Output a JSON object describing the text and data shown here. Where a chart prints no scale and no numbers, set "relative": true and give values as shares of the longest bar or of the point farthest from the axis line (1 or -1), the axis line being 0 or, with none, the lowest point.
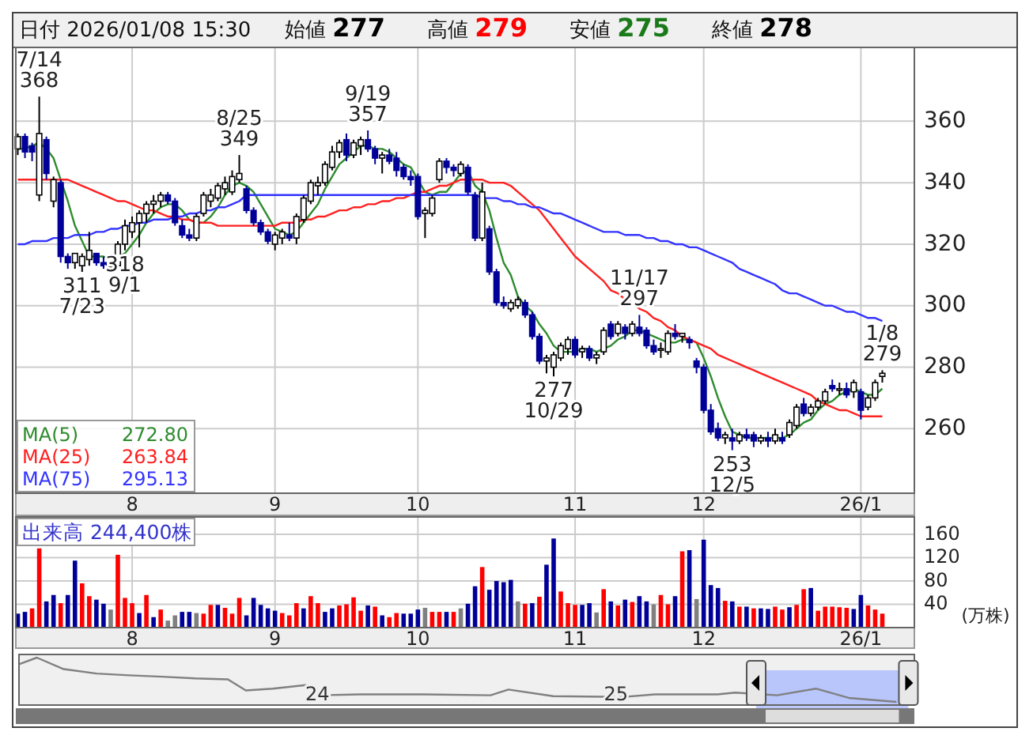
{
  "chart_data": [
    {
      "type": "candlestick",
      "title": "日付 2026/01/08 15:30",
      "annotations": [
        "始値 277",
        "高値 279",
        "安値 275",
        "終値 278",
        {
          "text": "7/14\n368",
          "y": 368
        },
        {
          "text": "311\n7/23",
          "y": 311
        },
        {
          "text": "8/25\n349",
          "y": 349
        },
        {
          "text": "318\n9/1",
          "y": 318
        },
        {
          "text": "9/19\n357",
          "y": 357
        },
        {
          "text": "277\n10/29",
          "y": 277
        },
        {
          "text": "11/17\n297",
          "y": 297
        },
        {
          "text": "253\n12/5",
          "y": 253
        },
        {
          "text": "1/8\n279",
          "y": 279
        }
      ],
      "categories": [
        null,
        null,
        null,
        null,
        null,
        null,
        null,
        null,
        null,
        null,
        null,
        null,
        null,
        null,
        null,
        null,
        "8",
        null,
        null,
        null,
        null,
        null,
        null,
        null,
        null,
        null,
        null,
        null,
        null,
        null,
        null,
        null,
        null,
        null,
        null,
        null,
        "9",
        null,
        null,
        null,
        null,
        null,
        null,
        null,
        null,
        null,
        null,
        null,
        null,
        null,
        null,
        null,
        null,
        null,
        null,
        null,
        "10",
        null,
        null,
        null,
        null,
        null,
        null,
        null,
        null,
        null,
        null,
        null,
        null,
        null,
        null,
        null,
        null,
        null,
        null,
        null,
        null,
        null,
        "11",
        null,
        null,
        null,
        null,
        null,
        null,
        null,
        null,
        null,
        null,
        null,
        null,
        null,
        null,
        null,
        null,
        null,
        "12",
        null,
        null,
        null,
        null,
        null,
        null,
        null,
        null,
        null,
        null,
        null,
        null,
        null,
        null,
        null,
        null,
        null,
        null,
        null,
        null,
        null,
        "26/1",
        null,
        null,
        null
      ],
      "ohlc": [
        [
          351,
          356,
          349,
          355
        ],
        [
          355,
          356,
          348,
          350
        ],
        [
          352,
          353,
          347,
          350
        ],
        [
          336,
          368,
          334,
          356
        ],
        [
          354,
          355,
          341,
          343
        ],
        [
          334,
          342,
          332,
          341
        ],
        [
          340,
          341,
          314,
          316
        ],
        [
          316,
          317,
          312,
          314
        ],
        [
          314,
          317,
          312,
          317
        ],
        [
          313,
          317,
          311,
          316
        ],
        [
          315,
          324,
          313,
          318
        ],
        [
          317,
          317,
          313,
          314
        ],
        [
          314,
          316,
          312,
          313
        ],
        [
          313,
          315,
          312,
          313
        ],
        [
          313,
          321,
          312,
          320
        ],
        [
          320,
          328,
          318,
          326
        ],
        [
          324,
          329,
          322,
          327
        ],
        [
          327,
          331,
          319,
          330
        ],
        [
          330,
          334,
          327,
          333
        ],
        [
          333,
          336,
          330,
          334
        ],
        [
          334,
          337,
          332,
          336
        ],
        [
          336,
          337,
          333,
          334
        ],
        [
          334,
          335,
          326,
          327
        ],
        [
          326,
          328,
          322,
          323
        ],
        [
          323,
          325,
          321,
          322
        ],
        [
          322,
          330,
          321,
          329
        ],
        [
          330,
          337,
          329,
          336
        ],
        [
          334,
          338,
          332,
          336
        ],
        [
          335,
          340,
          334,
          339
        ],
        [
          338,
          342,
          336,
          340
        ],
        [
          337,
          344,
          336,
          342
        ],
        [
          341,
          349,
          340,
          343
        ],
        [
          338,
          339,
          330,
          331
        ],
        [
          331,
          332,
          326,
          327
        ],
        [
          327,
          328,
          323,
          324
        ],
        [
          324,
          325,
          320,
          321
        ],
        [
          320,
          324,
          318,
          323
        ],
        [
          322,
          325,
          320,
          324
        ],
        [
          323,
          327,
          321,
          322
        ],
        [
          322,
          330,
          320,
          329
        ],
        [
          328,
          336,
          327,
          335
        ],
        [
          334,
          341,
          333,
          340
        ],
        [
          339,
          342,
          336,
          340
        ],
        [
          340,
          347,
          339,
          346
        ],
        [
          345,
          352,
          344,
          350
        ],
        [
          350,
          354,
          348,
          353
        ],
        [
          354,
          356,
          347,
          349
        ],
        [
          349,
          354,
          348,
          353
        ],
        [
          352,
          355,
          349,
          354
        ],
        [
          354,
          357,
          350,
          351
        ],
        [
          351,
          352,
          346,
          348
        ],
        [
          348,
          350,
          343,
          349
        ],
        [
          349,
          351,
          346,
          347
        ],
        [
          348,
          350,
          342,
          344
        ],
        [
          345,
          346,
          341,
          342
        ],
        [
          342,
          344,
          339,
          341
        ],
        [
          342,
          343,
          328,
          329
        ],
        [
          330,
          332,
          322,
          331
        ],
        [
          330,
          336,
          329,
          335
        ],
        [
          341,
          348,
          340,
          347
        ],
        [
          347,
          348,
          343,
          345
        ],
        [
          345,
          346,
          342,
          344
        ],
        [
          343,
          347,
          342,
          346
        ],
        [
          345,
          346,
          336,
          337
        ],
        [
          336,
          337,
          321,
          322
        ],
        [
          322,
          340,
          321,
          337
        ],
        [
          325,
          326,
          310,
          311
        ],
        [
          311,
          312,
          300,
          301
        ],
        [
          301,
          303,
          299,
          300
        ],
        [
          299,
          302,
          298,
          301
        ],
        [
          300,
          303,
          299,
          302
        ],
        [
          301,
          302,
          296,
          297
        ],
        [
          297,
          298,
          289,
          290
        ],
        [
          290,
          291,
          281,
          282
        ],
        [
          282,
          284,
          278,
          283
        ],
        [
          280,
          285,
          277,
          284
        ],
        [
          283,
          288,
          282,
          287
        ],
        [
          286,
          290,
          284,
          289
        ],
        [
          289,
          290,
          283,
          284
        ],
        [
          285,
          287,
          283,
          286
        ],
        [
          286,
          287,
          282,
          283
        ],
        [
          283,
          285,
          281,
          284
        ],
        [
          285,
          293,
          284,
          292
        ],
        [
          294,
          295,
          289,
          290
        ],
        [
          291,
          295,
          290,
          294
        ],
        [
          293,
          294,
          289,
          291
        ],
        [
          291,
          295,
          290,
          294
        ],
        [
          293,
          297,
          290,
          291
        ],
        [
          292,
          293,
          286,
          287
        ],
        [
          287,
          289,
          284,
          285
        ],
        [
          286,
          288,
          283,
          286
        ],
        [
          285,
          292,
          284,
          291
        ],
        [
          291,
          294,
          289,
          290
        ],
        [
          290,
          291,
          288,
          291
        ],
        [
          289,
          290,
          286,
          288
        ],
        [
          282,
          283,
          278,
          280
        ],
        [
          280,
          281,
          265,
          266
        ],
        [
          266,
          268,
          258,
          259
        ],
        [
          260,
          262,
          256,
          257
        ],
        [
          257,
          259,
          255,
          258
        ],
        [
          257,
          260,
          253,
          256
        ],
        [
          256,
          259,
          255,
          258
        ],
        [
          258,
          260,
          256,
          257
        ],
        [
          258,
          259,
          254,
          256
        ],
        [
          256,
          258,
          255,
          257
        ],
        [
          257,
          259,
          254,
          256
        ],
        [
          256,
          260,
          255,
          258
        ],
        [
          257,
          259,
          255,
          256
        ],
        [
          258,
          263,
          257,
          262
        ],
        [
          261,
          268,
          260,
          267
        ],
        [
          268,
          270,
          264,
          265
        ],
        [
          265,
          268,
          264,
          267
        ],
        [
          267,
          270,
          266,
          269
        ],
        [
          269,
          273,
          268,
          272
        ],
        [
          274,
          276,
          272,
          273
        ],
        [
          273,
          275,
          271,
          273
        ],
        [
          273,
          275,
          270,
          271
        ],
        [
          272,
          276,
          270,
          275
        ],
        [
          272,
          273,
          263,
          266
        ],
        [
          267,
          271,
          266,
          270
        ],
        [
          270,
          276,
          269,
          275
        ],
        [
          277,
          279,
          275,
          278
        ]
      ],
      "series": [
        {
          "name": "MA(5) 272.80",
          "type": "line",
          "color": "#2e8b2e",
          "values": [
            351,
            351,
            352,
            353,
            351,
            348,
            341,
            334,
            326,
            321,
            316,
            316,
            316,
            315,
            316,
            317,
            320,
            323,
            327,
            330,
            332,
            333,
            333,
            331,
            328,
            327,
            327,
            329,
            332,
            336,
            339,
            340,
            339,
            337,
            333,
            329,
            325,
            324,
            323,
            324,
            327,
            330,
            333,
            338,
            342,
            346,
            348,
            350,
            352,
            352,
            351,
            351,
            350,
            348,
            346,
            345,
            341,
            337,
            336,
            337,
            337,
            340,
            343,
            344,
            339,
            337,
            331,
            322,
            314,
            310,
            303,
            300,
            298,
            294,
            291,
            287,
            285,
            285,
            285,
            286,
            286,
            285,
            286,
            287,
            289,
            290,
            292,
            292,
            291,
            290,
            289,
            288,
            288,
            289,
            289,
            288,
            283,
            277,
            270,
            264,
            259,
            258,
            257,
            257,
            257,
            257,
            257,
            257,
            258,
            260,
            262,
            263,
            266,
            268,
            269,
            271,
            272,
            273,
            272,
            271,
            271,
            273
          ]
        },
        {
          "name": "MA(25) 263.84",
          "type": "line",
          "color": "#ff2020",
          "values": [
            341,
            341,
            341,
            341,
            341,
            341,
            341,
            341,
            340,
            339,
            338,
            337,
            336,
            335,
            334,
            334,
            333,
            332,
            331,
            331,
            330,
            329,
            329,
            328,
            328,
            327,
            327,
            327,
            326,
            326,
            326,
            326,
            326,
            326,
            326,
            326,
            326,
            327,
            327,
            327,
            328,
            328,
            329,
            329,
            330,
            331,
            331,
            332,
            332,
            333,
            333,
            334,
            334,
            335,
            335,
            336,
            337,
            337,
            338,
            339,
            339,
            340,
            341,
            341,
            341,
            341,
            340,
            340,
            340,
            339,
            337,
            335,
            333,
            331,
            328,
            325,
            322,
            319,
            316,
            314,
            312,
            310,
            308,
            305,
            304,
            302,
            301,
            299,
            298,
            296,
            295,
            293,
            292,
            290,
            289,
            288,
            287,
            286,
            284,
            283,
            282,
            281,
            280,
            279,
            278,
            277,
            276,
            275,
            274,
            273,
            272,
            271,
            269,
            268,
            267,
            266,
            266,
            265,
            264,
            264,
            264,
            264
          ]
        },
        {
          "name": "MA(75) 295.13",
          "type": "line",
          "color": "#3333ff",
          "values": [
            320,
            320,
            321,
            321,
            321,
            322,
            322,
            322,
            323,
            323,
            323,
            324,
            324,
            325,
            325,
            326,
            326,
            327,
            327,
            328,
            328,
            328,
            329,
            329,
            330,
            330,
            331,
            331,
            332,
            332,
            333,
            334,
            336,
            336,
            336,
            336,
            336,
            336,
            336,
            336,
            336,
            336,
            336,
            336,
            336,
            336,
            336,
            336,
            336,
            336,
            336,
            336,
            336,
            336,
            336,
            336,
            336,
            336,
            336,
            336,
            336,
            336,
            336,
            336,
            336,
            335,
            335,
            335,
            334,
            334,
            333,
            333,
            332,
            332,
            331,
            330,
            330,
            329,
            328,
            327,
            326,
            325,
            324,
            324,
            324,
            323,
            323,
            323,
            322,
            322,
            321,
            321,
            320,
            320,
            319,
            319,
            318,
            317,
            316,
            315,
            314,
            312,
            311,
            310,
            309,
            308,
            307,
            305,
            304,
            304,
            303,
            302,
            301,
            300,
            300,
            299,
            298,
            298,
            297,
            296,
            296,
            295
          ]
        }
      ],
      "ylim": [
        239,
        384
      ],
      "yticks": [
        260,
        280,
        300,
        320,
        340,
        360
      ],
      "grid": true
    },
    {
      "type": "bar",
      "title": "出来高 244,400株",
      "ylabel": "(万株)",
      "categories": [
        null,
        null,
        null,
        null,
        null,
        null,
        null,
        null,
        null,
        null,
        null,
        null,
        null,
        null,
        null,
        null,
        "8",
        null,
        null,
        null,
        null,
        null,
        null,
        null,
        null,
        null,
        null,
        null,
        null,
        null,
        null,
        null,
        null,
        null,
        null,
        null,
        "9",
        null,
        null,
        null,
        null,
        null,
        null,
        null,
        null,
        null,
        null,
        null,
        null,
        null,
        null,
        null,
        null,
        null,
        null,
        null,
        "10",
        null,
        null,
        null,
        null,
        null,
        null,
        null,
        null,
        null,
        null,
        null,
        null,
        null,
        null,
        null,
        null,
        null,
        null,
        null,
        null,
        null,
        "11",
        null,
        null,
        null,
        null,
        null,
        null,
        null,
        null,
        null,
        null,
        null,
        null,
        null,
        null,
        null,
        null,
        null,
        "12",
        null,
        null,
        null,
        null,
        null,
        null,
        null,
        null,
        null,
        null,
        null,
        null,
        null,
        null,
        null,
        null,
        null,
        null,
        null,
        null,
        null,
        "26/1",
        null,
        null,
        null
      ],
      "values": [
        24,
        27,
        33,
        136,
        45,
        56,
        42,
        56,
        115,
        76,
        54,
        48,
        41,
        31,
        125,
        51,
        42,
        25,
        56,
        18,
        31,
        12,
        21,
        27,
        27,
        25,
        24,
        39,
        39,
        34,
        24,
        51,
        21,
        51,
        39,
        33,
        29,
        25,
        21,
        42,
        33,
        54,
        42,
        27,
        33,
        38,
        40,
        52,
        29,
        38,
        36,
        21,
        18,
        25,
        24,
        24,
        31,
        34,
        27,
        27,
        27,
        27,
        33,
        41,
        71,
        104,
        65,
        80,
        78,
        82,
        45,
        41,
        42,
        53,
        108,
        153,
        62,
        42,
        39,
        39,
        42,
        26,
        66,
        45,
        38,
        48,
        44,
        54,
        45,
        40,
        56,
        40,
        54,
        131,
        133,
        49,
        151,
        73,
        68,
        46,
        45,
        36,
        36,
        33,
        33,
        32,
        36,
        31,
        35,
        39,
        66,
        68,
        29,
        36,
        36,
        35,
        34,
        32,
        56,
        38,
        31,
        24
      ],
      "colors": [
        "#000099",
        "#000099",
        "#ff0000",
        "#ff0000",
        "#000099",
        "#000099",
        "#ff0000",
        "#000099",
        "#000099",
        "#ff0000",
        "#ff0000",
        "#000099",
        "#000099",
        "#808080",
        "#ff0000",
        "#ff0000",
        "#ff0000",
        "#000099",
        "#ff0000",
        "#000099",
        "#ff0000",
        "#808080",
        "#808080",
        "#000099",
        "#000099",
        "#808080",
        "#ff0000",
        "#ff0000",
        "#000099",
        "#ff0000",
        "#ff0000",
        "#ff0000",
        "#000099",
        "#000099",
        "#000099",
        "#000099",
        "#000099",
        "#ff0000",
        "#ff0000",
        "#ff0000",
        "#000099",
        "#ff0000",
        "#ff0000",
        "#000099",
        "#000099",
        "#ff0000",
        "#ff0000",
        "#ff0000",
        "#ff0000",
        "#000099",
        "#ff0000",
        "#000099",
        "#ff0000",
        "#ff0000",
        "#000099",
        "#000099",
        "#000099",
        "#808080",
        "#ff0000",
        "#ff0000",
        "#000099",
        "#ff0000",
        "#808080",
        "#000099",
        "#000099",
        "#ff0000",
        "#000099",
        "#000099",
        "#000099",
        "#000099",
        "#808080",
        "#ff0000",
        "#000099",
        "#ff0000",
        "#000099",
        "#000099",
        "#ff0000",
        "#ff0000",
        "#ff0000",
        "#000099",
        "#000099",
        "#808080",
        "#ff0000",
        "#000099",
        "#ff0000",
        "#000099",
        "#ff0000",
        "#000099",
        "#000099",
        "#808080",
        "#ff0000",
        "#ff0000",
        "#000099",
        "#ff0000",
        "#000099",
        "#808080",
        "#000099",
        "#000099",
        "#000099",
        "#ff0000",
        "#000099",
        "#ff0000",
        "#000099",
        "#ff0000",
        "#000099",
        "#000099",
        "#ff0000",
        "#ff0000",
        "#000099",
        "#ff0000",
        "#ff0000",
        "#000099",
        "#ff0000",
        "#ff0000",
        "#ff0000",
        "#ff0000",
        "#ff0000",
        "#000099",
        "#000099",
        "#ff0000",
        "#ff0000",
        "#ff0000"
      ],
      "ylim": [
        0,
        190
      ],
      "yticks": [
        40,
        80,
        120,
        160
      ],
      "grid": true
    },
    {
      "type": "line",
      "relative": true,
      "color": "#808080",
      "x": [
        2023.0,
        2023.06,
        2023.15,
        2023.26,
        2023.37,
        2023.48,
        2023.59,
        2023.7,
        2023.76,
        2023.85,
        2023.96,
        2024.01,
        2024.14,
        2024.36,
        2024.58,
        2024.64,
        2024.79,
        2025.02,
        2025.13,
        2025.34,
        2025.4,
        2025.54,
        2025.67,
        2025.78,
        2025.94
      ],
      "values": [
        0.85,
        1,
        0.74,
        0.64,
        0.6,
        0.57,
        0.53,
        0.51,
        0.26,
        0.3,
        0.38,
        0.15,
        0.17,
        0.17,
        0.15,
        0.28,
        0.13,
        0.11,
        0.17,
        0.17,
        0.21,
        0.15,
        0.3,
        0.09,
        0
      ],
      "xlim": [
        2023.0,
        2026.0
      ],
      "xticks": [
        {
          "value": 2024,
          "label": "24"
        },
        {
          "value": 2025,
          "label": "25"
        }
      ],
      "bands": [
        {
          "axis": "x",
          "from": 2025.47,
          "to": 2025.98,
          "color": "#aabbff"
        }
      ]
    }
  ]
}
